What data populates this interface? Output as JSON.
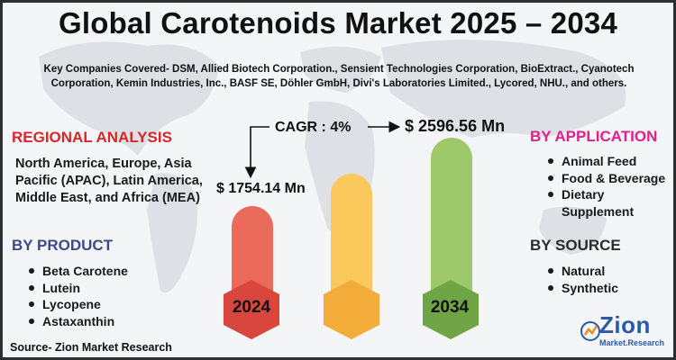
{
  "title": "Global Carotenoids Market 2025 – 2034",
  "companies": "Key Companies Covered- DSM, Allied Biotech Corporation., Sensient Technologies Corporation, BioExtract., Cyanotech Corporation, Kemin Industries, Inc., BASF SE, Döhler GmbH, Divi's Laboratories Limited., Lycored, NHU., and others.",
  "regional": {
    "heading": "REGIONAL ANALYSIS",
    "text": "North America, Europe, Asia Pacific (APAC), Latin America, Middle East, and Africa (MEA)"
  },
  "product": {
    "heading": "BY PRODUCT",
    "items": [
      "Beta Carotene",
      "Lutein",
      "Lycopene",
      "Astaxanthin"
    ]
  },
  "application": {
    "heading": "BY APPLICATION",
    "items": [
      "Animal Feed",
      "Food & Beverage",
      "Dietary Supplement"
    ]
  },
  "source": {
    "heading": "BY SOURCE",
    "items": [
      "Natural",
      "Synthetic"
    ]
  },
  "growth": {
    "cagr": "CAGR : 4%",
    "start_value": "$ 1754.14 Mn",
    "end_value": "$ 2596.56 Mn",
    "start_year": "2024",
    "end_year": "2034"
  },
  "colors": {
    "bar_2024": "#ea6a5c",
    "bar_mid": "#fbc85b",
    "bar_2034": "#9dc96b",
    "hex_2024": "#d9463d",
    "hex_mid": "#f3ac3a",
    "hex_2034": "#6fa544",
    "regional_heading": "#d9262b",
    "product_heading": "#3c4a8a",
    "application_heading": "#e11f8d"
  },
  "source_note": "Source- Zion Market Research",
  "logo": {
    "word": "Zion",
    "sub": "Market.Research"
  }
}
